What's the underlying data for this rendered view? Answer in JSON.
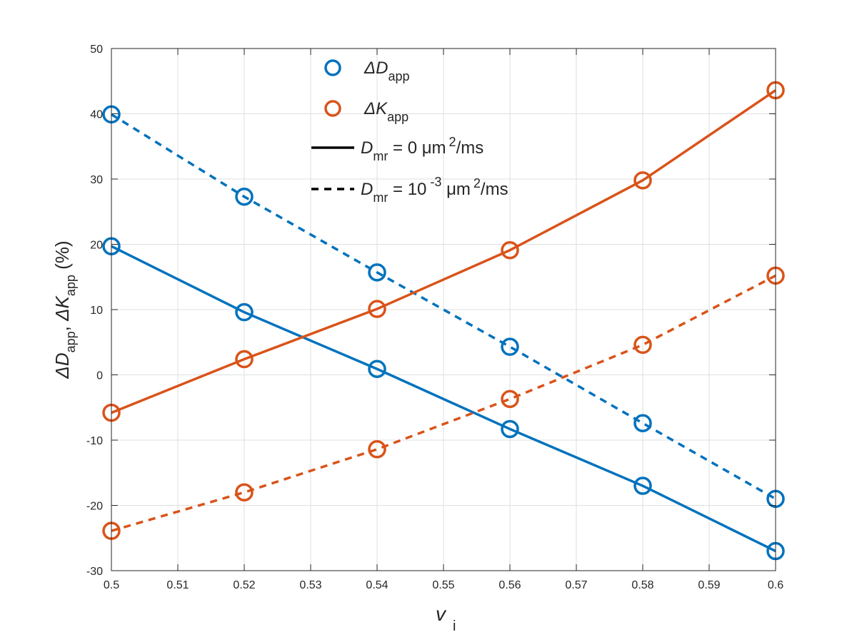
{
  "chart_data": {
    "type": "line",
    "title": "",
    "xlabel": {
      "main": "v",
      "sub": "i"
    },
    "ylabel": {
      "d_sym": "ΔD",
      "d_sub": "app",
      "sep": ", ",
      "k_sym": "ΔK",
      "k_sub": "app",
      "unit": " (%)"
    },
    "xlim": [
      0.5,
      0.6
    ],
    "ylim": [
      -30,
      50
    ],
    "xticks": [
      0.5,
      0.51,
      0.52,
      0.53,
      0.54,
      0.55,
      0.56,
      0.57,
      0.58,
      0.59,
      0.6
    ],
    "xtick_labels": [
      "0.5",
      "0.51",
      "0.52",
      "0.53",
      "0.54",
      "0.55",
      "0.56",
      "0.57",
      "0.58",
      "0.59",
      "0.6"
    ],
    "yticks": [
      -30,
      -20,
      -10,
      0,
      10,
      20,
      30,
      40,
      50
    ],
    "ytick_labels": [
      "-30",
      "-20",
      "-10",
      "0",
      "10",
      "20",
      "30",
      "40",
      "50"
    ],
    "grid": true,
    "legend_position": "top-center",
    "colors": {
      "d": "#0072bd",
      "k": "#d95319",
      "legend_line": "#000000"
    },
    "series": [
      {
        "quantity": "D",
        "dmr": "0",
        "style": "solid",
        "x": [
          0.5,
          0.52,
          0.54,
          0.56,
          0.58,
          0.6
        ],
        "y": [
          19.7,
          9.6,
          0.9,
          -8.3,
          -17.0,
          -27.0
        ]
      },
      {
        "quantity": "D",
        "dmr": "1e-3",
        "style": "dashed",
        "x": [
          0.5,
          0.52,
          0.54,
          0.56,
          0.58,
          0.6
        ],
        "y": [
          39.9,
          27.3,
          15.7,
          4.3,
          -7.4,
          -19.0
        ]
      },
      {
        "quantity": "K",
        "dmr": "0",
        "style": "solid",
        "x": [
          0.5,
          0.52,
          0.54,
          0.56,
          0.58,
          0.6
        ],
        "y": [
          -5.8,
          2.4,
          10.1,
          19.1,
          29.8,
          43.6
        ]
      },
      {
        "quantity": "K",
        "dmr": "1e-3",
        "style": "dashed",
        "x": [
          0.5,
          0.52,
          0.54,
          0.56,
          0.58,
          0.6
        ],
        "y": [
          -23.9,
          -18.0,
          -11.4,
          -3.7,
          4.6,
          15.2
        ]
      }
    ],
    "legend": [
      {
        "kind": "marker",
        "series": "d",
        "sym": "ΔD",
        "sub": "app"
      },
      {
        "kind": "marker",
        "series": "k",
        "sym": "ΔK",
        "sub": "app"
      },
      {
        "kind": "line-solid",
        "lhs": "D",
        "lhs_sub": "mr",
        "eq": " = 0  ",
        "unit": "μm",
        "unit_sup": "2",
        "unit_tail": "/ms"
      },
      {
        "kind": "line-dashed",
        "lhs": "D",
        "lhs_sub": "mr",
        "eq": " = 10",
        "eq_sup": " -3",
        "unit": "  μm",
        "unit_sup": "2",
        "unit_tail": "/ms"
      }
    ]
  }
}
